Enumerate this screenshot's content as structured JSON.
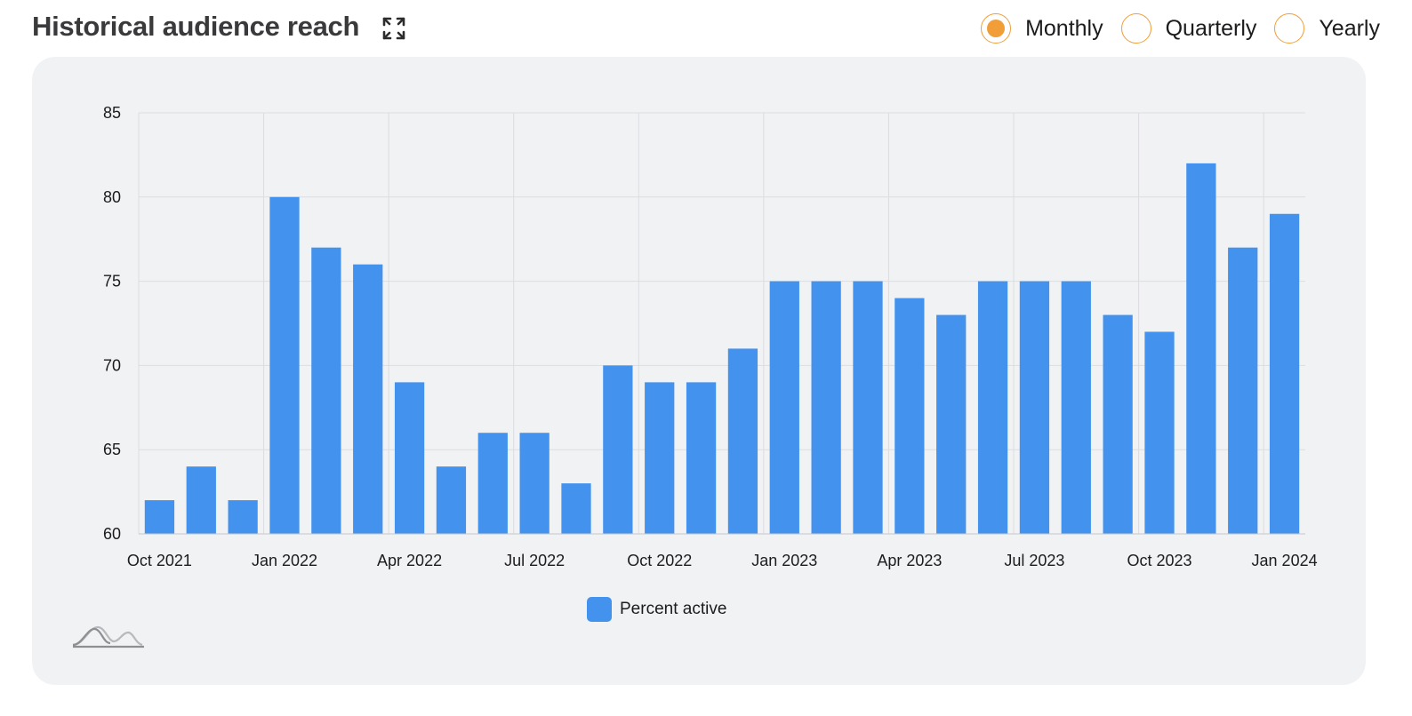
{
  "header": {
    "title": "Historical audience reach",
    "expand_icon": "expand-icon"
  },
  "period_selector": {
    "selected": "Monthly",
    "options": [
      {
        "label": "Monthly",
        "selected": true
      },
      {
        "label": "Quarterly",
        "selected": false
      },
      {
        "label": "Yearly",
        "selected": false
      }
    ],
    "accent_color": "#f19d38"
  },
  "colors": {
    "bar": "#4393ee",
    "card_background": "#f1f2f4",
    "grid": "#dcdde1"
  },
  "chart_data": {
    "type": "bar",
    "categories": [
      "Oct 2021",
      "Nov 2021",
      "Dec 2021",
      "Jan 2022",
      "Feb 2022",
      "Mar 2022",
      "Apr 2022",
      "May 2022",
      "Jun 2022",
      "Jul 2022",
      "Aug 2022",
      "Sep 2022",
      "Oct 2022",
      "Nov 2022",
      "Dec 2022",
      "Jan 2023",
      "Feb 2023",
      "Mar 2023",
      "Apr 2023",
      "May 2023",
      "Jun 2023",
      "Jul 2023",
      "Aug 2023",
      "Sep 2023",
      "Oct 2023",
      "Nov 2023",
      "Dec 2023",
      "Jan 2024"
    ],
    "series": [
      {
        "name": "Percent active",
        "values": [
          62,
          64,
          62,
          80,
          77,
          76,
          69,
          64,
          66,
          66,
          63,
          70,
          69,
          69,
          71,
          75,
          75,
          75,
          74,
          73,
          75,
          75,
          75,
          73,
          72,
          82,
          77,
          79
        ]
      }
    ],
    "x_tick_labels": [
      "Oct 2021",
      "Jan 2022",
      "Apr 2022",
      "Jul 2022",
      "Oct 2022",
      "Jan 2023",
      "Apr 2023",
      "Jul 2023",
      "Oct 2023",
      "Jan 2024"
    ],
    "y_ticks": [
      60,
      65,
      70,
      75,
      80,
      85
    ],
    "ylim": [
      60,
      85
    ],
    "xlabel": "",
    "ylabel": "",
    "grid": true,
    "legend_position": "bottom-center"
  },
  "watermark_icon": "chart-logo-icon"
}
